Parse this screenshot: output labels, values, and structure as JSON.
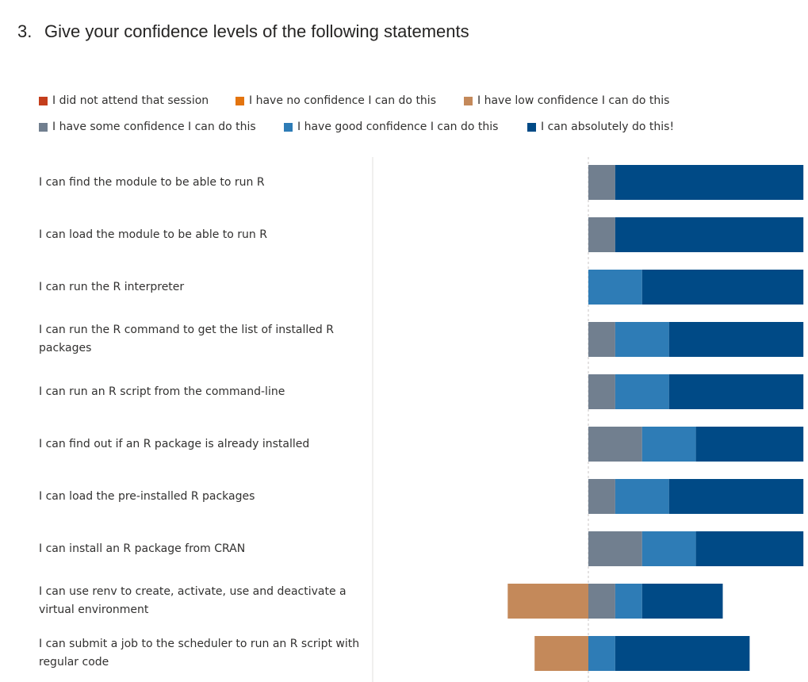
{
  "question": {
    "number": "3.",
    "text": "Give your confidence levels of the following statements"
  },
  "legend": [
    {
      "label": "I did not attend that session",
      "color": "#c43e1c"
    },
    {
      "label": "I have no confidence I can do this",
      "color": "#e3740f"
    },
    {
      "label": "I have low confidence I can do this",
      "color": "#c4895a"
    },
    {
      "label": "I have some confidence I can do this",
      "color": "#717f8f"
    },
    {
      "label": "I have good confidence I can do this",
      "color": "#2e7cb6"
    },
    {
      "label": "I can absolutely do this!",
      "color": "#004a86"
    }
  ],
  "chart_data": {
    "type": "bar",
    "orientation": "horizontal",
    "stacking": "diverging",
    "categories": [
      "I can find the module to be able to run R",
      "I can load the module to be able to run R",
      "I can run the R interpreter",
      "I can run the R command to get the list of installed R packages",
      "I can run an R script from the command-line",
      "I can find out if an R package is already installed",
      "I can load the pre-installed R packages",
      "I can install an R package from CRAN",
      "I can use renv to create, activate, use and deactivate a virtual environment",
      "I can submit a job to the scheduler to run an R script with regular code"
    ],
    "series": [
      {
        "name": "I did not attend that session",
        "values": [
          0,
          0,
          0,
          0,
          0,
          0,
          0,
          0,
          0,
          0
        ]
      },
      {
        "name": "I have no confidence I can do this",
        "values": [
          0,
          0,
          0,
          0,
          0,
          0,
          0,
          0,
          0,
          0
        ]
      },
      {
        "name": "I have low confidence I can do this",
        "values": [
          0,
          0,
          0,
          0,
          0,
          0,
          0,
          0,
          3,
          2
        ]
      },
      {
        "name": "I have some confidence I can do this",
        "values": [
          1,
          1,
          0,
          1,
          1,
          2,
          1,
          2,
          1,
          0
        ]
      },
      {
        "name": "I have good confidence I can do this",
        "values": [
          0,
          0,
          2,
          2,
          2,
          2,
          2,
          2,
          1,
          1
        ]
      },
      {
        "name": "I can absolutely do this!",
        "values": [
          7,
          7,
          6,
          5,
          5,
          4,
          5,
          4,
          3,
          5
        ]
      }
    ],
    "legend_position": "top",
    "grid": false
  }
}
